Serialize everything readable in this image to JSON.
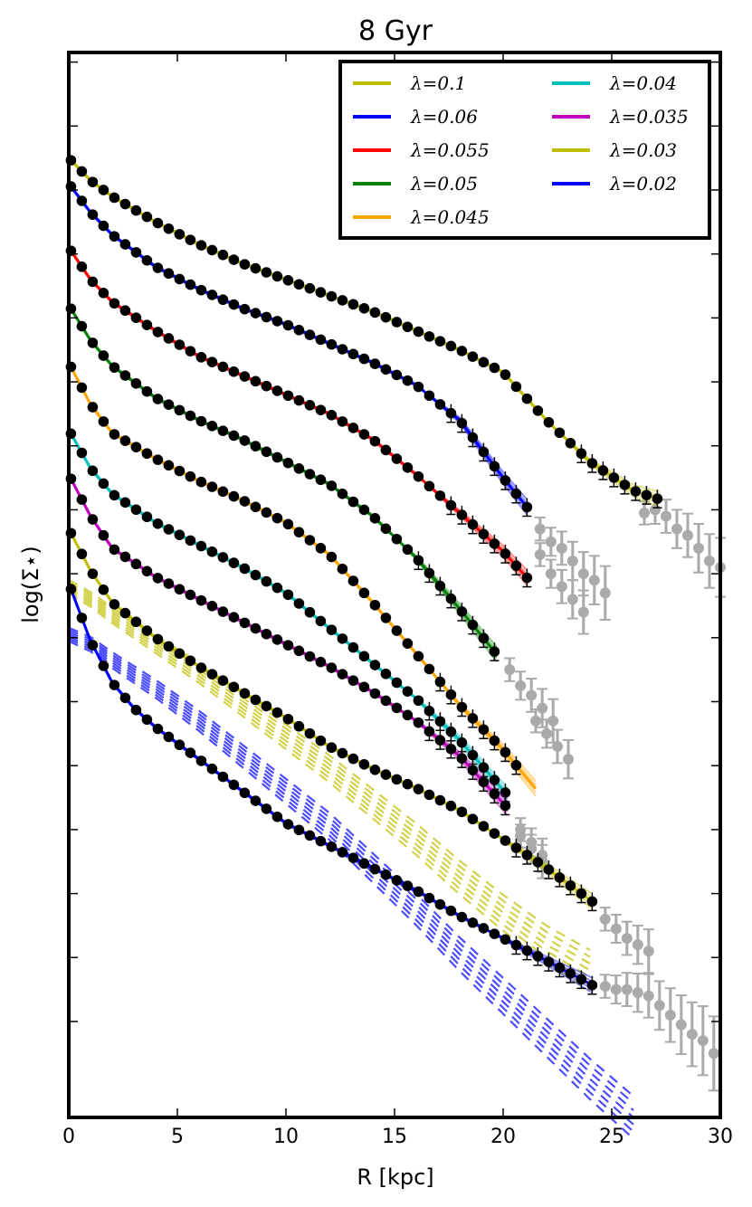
{
  "chart_data": {
    "type": "line",
    "title": "8 Gyr",
    "xlabel": "R [kpc]",
    "ylabel": "log(Σ⋆)",
    "xlim": [
      0,
      30
    ],
    "ylim": [
      -15.0,
      1.65
    ],
    "x_ticks": [
      0,
      5,
      10,
      15,
      20,
      25,
      30
    ],
    "y_ticks": [
      -13.5,
      -12.5,
      -11.5,
      -10.5,
      -9.5,
      -8.5,
      -7.5,
      -6.5,
      -5.5,
      -4.5,
      -3.5,
      -2.5,
      -1.5,
      -0.5,
      0.5,
      1.5
    ],
    "y_tick_labels_shown": false,
    "grid": false,
    "legend_position": "top-right",
    "legend_columns": 2,
    "series": [
      {
        "name": "λ=0.1",
        "color": "#bfbf00",
        "offset": 0.0,
        "rmax": 27.3,
        "rdata": 27.3,
        "knots": [
          [
            0,
            0
          ],
          [
            1,
            -0.35
          ],
          [
            2,
            -0.6
          ],
          [
            4,
            -1.0
          ],
          [
            6,
            -1.35
          ],
          [
            8,
            -1.65
          ],
          [
            10,
            -1.9
          ],
          [
            12,
            -2.15
          ],
          [
            14,
            -2.4
          ],
          [
            16,
            -2.7
          ],
          [
            18,
            -3.0
          ],
          [
            20,
            -3.35
          ],
          [
            22,
            -4.1
          ],
          [
            24,
            -4.75
          ],
          [
            26,
            -5.2
          ],
          [
            27.3,
            -5.35
          ]
        ],
        "gray_x": [
          26.5,
          27.0,
          27.5,
          28.0,
          28.5,
          29.0,
          29.5,
          30.0
        ],
        "gray_y": [
          -5.55,
          -5.5,
          -5.6,
          -5.8,
          -5.9,
          -6.1,
          -6.3,
          -6.4
        ]
      },
      {
        "name": "λ=0.06",
        "color": "#0000ff",
        "offset": -0.4,
        "rmax": 21.2,
        "rdata": 21.2,
        "knots": [
          [
            0,
            0
          ],
          [
            1,
            -0.45
          ],
          [
            2,
            -0.8
          ],
          [
            4,
            -1.3
          ],
          [
            6,
            -1.65
          ],
          [
            8,
            -1.95
          ],
          [
            10,
            -2.2
          ],
          [
            12,
            -2.5
          ],
          [
            14,
            -2.8
          ],
          [
            16,
            -3.15
          ],
          [
            18,
            -3.7
          ],
          [
            20,
            -4.6
          ],
          [
            21.2,
            -5.1
          ]
        ],
        "gray_x": [
          21.7,
          22.2,
          22.7,
          23.2,
          23.7,
          24.2,
          24.7
        ],
        "gray_y": [
          -5.8,
          -6.0,
          -6.1,
          -6.3,
          -6.5,
          -6.6,
          -6.8
        ]
      },
      {
        "name": "λ=0.055",
        "color": "#ff0000",
        "offset": -1.4,
        "rmax": 21.2,
        "rdata": 21.2,
        "knots": [
          [
            0,
            0
          ],
          [
            1,
            -0.5
          ],
          [
            2,
            -0.85
          ],
          [
            4,
            -1.3
          ],
          [
            6,
            -1.7
          ],
          [
            8,
            -2.0
          ],
          [
            10,
            -2.3
          ],
          [
            12,
            -2.6
          ],
          [
            14,
            -3.0
          ],
          [
            16,
            -3.55
          ],
          [
            18,
            -4.15
          ],
          [
            20,
            -4.75
          ],
          [
            21.2,
            -5.2
          ]
        ],
        "gray_x": [
          21.7,
          22.2,
          22.7,
          23.2,
          23.7
        ],
        "gray_y": [
          -6.2,
          -6.5,
          -6.7,
          -6.9,
          -7.1
        ]
      },
      {
        "name": "λ=0.05",
        "color": "#008000",
        "offset": -2.3,
        "rmax": 19.8,
        "rdata": 19.8,
        "knots": [
          [
            0,
            0
          ],
          [
            1,
            -0.55
          ],
          [
            2,
            -0.95
          ],
          [
            4,
            -1.45
          ],
          [
            6,
            -1.8
          ],
          [
            8,
            -2.1
          ],
          [
            10,
            -2.45
          ],
          [
            12,
            -2.8
          ],
          [
            14,
            -3.3
          ],
          [
            16,
            -3.95
          ],
          [
            18,
            -4.75
          ],
          [
            19.8,
            -5.5
          ]
        ],
        "gray_x": [
          20.3,
          20.8,
          21.3,
          21.8,
          22.3
        ],
        "gray_y": [
          -8.0,
          -8.25,
          -8.4,
          -8.6,
          -8.8
        ]
      },
      {
        "name": "λ=0.045",
        "color": "#ffa500",
        "offset": -3.2,
        "rmax": 21.6,
        "rdata": 21.0,
        "knots": [
          [
            0,
            0
          ],
          [
            1,
            -0.65
          ],
          [
            2,
            -1.1
          ],
          [
            4,
            -1.5
          ],
          [
            6,
            -1.85
          ],
          [
            8,
            -2.15
          ],
          [
            10,
            -2.5
          ],
          [
            12,
            -3.0
          ],
          [
            14,
            -3.75
          ],
          [
            16,
            -4.55
          ],
          [
            18,
            -5.35
          ],
          [
            20,
            -6.05
          ],
          [
            21.6,
            -6.7
          ]
        ],
        "gray_x": [
          21.5,
          22.0,
          22.5,
          23.0
        ],
        "gray_y": [
          -8.8,
          -9.0,
          -9.2,
          -9.4
        ]
      },
      {
        "name": "λ=0.04",
        "color": "#00bfbf",
        "offset": -4.25,
        "rmax": 20.3,
        "rdata": 20.3,
        "knots": [
          [
            0,
            0
          ],
          [
            1,
            -0.6
          ],
          [
            2,
            -1.0
          ],
          [
            4,
            -1.45
          ],
          [
            6,
            -1.8
          ],
          [
            8,
            -2.15
          ],
          [
            10,
            -2.55
          ],
          [
            12,
            -3.1
          ],
          [
            14,
            -3.65
          ],
          [
            16,
            -4.2
          ],
          [
            18,
            -4.85
          ],
          [
            20.3,
            -5.75
          ]
        ],
        "gray_x": [
          20.8,
          21.3,
          21.8
        ],
        "gray_y": [
          -10.5,
          -10.7,
          -10.9
        ]
      },
      {
        "name": "λ=0.035",
        "color": "#bf00bf",
        "offset": -4.95,
        "rmax": 20.3,
        "rdata": 20.3,
        "knots": [
          [
            0,
            0
          ],
          [
            1,
            -0.65
          ],
          [
            2,
            -1.15
          ],
          [
            4,
            -1.6
          ],
          [
            6,
            -1.95
          ],
          [
            8,
            -2.3
          ],
          [
            10,
            -2.65
          ],
          [
            12,
            -3.0
          ],
          [
            14,
            -3.4
          ],
          [
            16,
            -3.85
          ],
          [
            18,
            -4.4
          ],
          [
            20.3,
            -5.25
          ]
        ],
        "gray_x": [
          20.8,
          21.3,
          21.8
        ],
        "gray_y": [
          -10.6,
          -10.8,
          -11.0
        ]
      },
      {
        "name": "λ=0.03",
        "color": "#bfbf00",
        "offset": -5.8,
        "rmax": 24.2,
        "rdata": 24.2,
        "knots": [
          [
            0,
            0
          ],
          [
            1,
            -0.65
          ],
          [
            2,
            -1.15
          ],
          [
            4,
            -1.7
          ],
          [
            6,
            -2.15
          ],
          [
            8,
            -2.55
          ],
          [
            10,
            -2.95
          ],
          [
            12,
            -3.4
          ],
          [
            14,
            -3.75
          ],
          [
            16,
            -4.05
          ],
          [
            18,
            -4.4
          ],
          [
            20,
            -4.85
          ],
          [
            22,
            -5.3
          ],
          [
            24.2,
            -5.85
          ]
        ],
        "gray_x": [
          24.7,
          25.2,
          25.7,
          26.2,
          26.7
        ],
        "gray_y": [
          -11.9,
          -12.05,
          -12.2,
          -12.3,
          -12.4
        ]
      },
      {
        "name": "λ=0.02",
        "color": "#0000ff",
        "offset": -6.65,
        "rmax": 24.2,
        "rdata": 24.2,
        "knots": [
          [
            0,
            0
          ],
          [
            1,
            -0.9
          ],
          [
            2,
            -1.55
          ],
          [
            3,
            -1.95
          ],
          [
            4,
            -2.25
          ],
          [
            6,
            -2.75
          ],
          [
            8,
            -3.25
          ],
          [
            10,
            -3.75
          ],
          [
            12,
            -4.1
          ],
          [
            14,
            -4.45
          ],
          [
            16,
            -4.8
          ],
          [
            18,
            -5.2
          ],
          [
            20,
            -5.55
          ],
          [
            22,
            -5.9
          ],
          [
            24.2,
            -6.3
          ]
        ],
        "gray_x": [
          24.7,
          25.2,
          25.7,
          26.2,
          26.7,
          27.2,
          27.7,
          28.2,
          28.7,
          29.2,
          29.7
        ],
        "gray_y": [
          -12.95,
          -13.0,
          -13.0,
          -13.05,
          -13.1,
          -13.25,
          -13.4,
          -13.55,
          -13.7,
          -13.8,
          -14.0
        ]
      }
    ],
    "dashed": [
      {
        "color": "#bfbf00",
        "knots": [
          [
            0,
            -6.7
          ],
          [
            1,
            -6.9
          ],
          [
            2,
            -7.15
          ],
          [
            4,
            -7.6
          ],
          [
            6,
            -8.05
          ],
          [
            8,
            -8.55
          ],
          [
            10,
            -9.05
          ],
          [
            12,
            -9.55
          ],
          [
            14,
            -10.1
          ],
          [
            16,
            -10.65
          ],
          [
            18,
            -11.25
          ],
          [
            20,
            -11.8
          ],
          [
            22,
            -12.3
          ],
          [
            24,
            -12.7
          ]
        ]
      },
      {
        "color": "#0000ff",
        "knots": [
          [
            0,
            -7.45
          ],
          [
            1,
            -7.6
          ],
          [
            2,
            -7.85
          ],
          [
            4,
            -8.3
          ],
          [
            6,
            -8.8
          ],
          [
            8,
            -9.35
          ],
          [
            10,
            -9.9
          ],
          [
            12,
            -10.45
          ],
          [
            14,
            -11.1
          ],
          [
            16,
            -11.75
          ],
          [
            18,
            -12.45
          ],
          [
            20,
            -13.1
          ],
          [
            22,
            -13.75
          ],
          [
            24,
            -14.4
          ],
          [
            26,
            -15.0
          ]
        ]
      }
    ]
  }
}
